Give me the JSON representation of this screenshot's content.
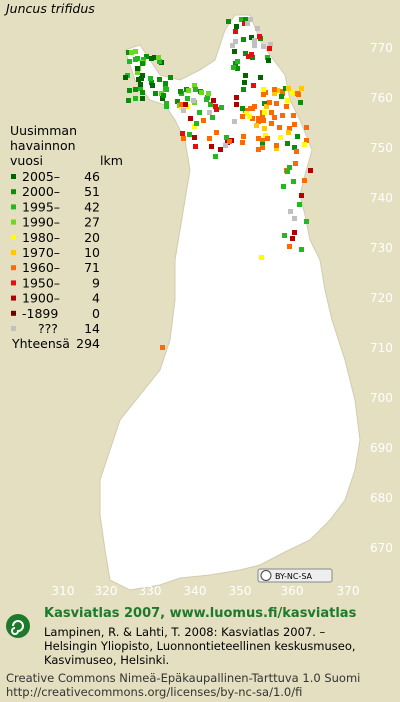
{
  "title": "Juncus trifidus",
  "legend": {
    "heading": [
      "Uusimman",
      "havainnon"
    ],
    "col_year": "vuosi",
    "col_count": "lkm",
    "rows": [
      {
        "label": "2005–",
        "count": 46,
        "color": "#006400"
      },
      {
        "label": "2000–",
        "count": 51,
        "color": "#0a8f0a"
      },
      {
        "label": "1995–",
        "count": 42,
        "color": "#22b822"
      },
      {
        "label": "1990–",
        "count": 27,
        "color": "#6ed81e"
      },
      {
        "label": "1980–",
        "count": 20,
        "color": "#ffff00"
      },
      {
        "label": "1970–",
        "count": 10,
        "color": "#ffc800"
      },
      {
        "label": "1960–",
        "count": 71,
        "color": "#ff6a00"
      },
      {
        "label": "1950–",
        "count": 9,
        "color": "#e01010"
      },
      {
        "label": "1900–",
        "count": 4,
        "color": "#b00000"
      },
      {
        "label": "-1899",
        "count": 0,
        "color": "#6a0000"
      },
      {
        "label": "???",
        "count": 14,
        "color": "#c0c0c0"
      }
    ],
    "total_label": "Yhteensä",
    "total": 294
  },
  "x_axis_labels": [
    310,
    320,
    330,
    340,
    350,
    360,
    370
  ],
  "y_axis_labels": [
    770,
    760,
    750,
    740,
    730,
    720,
    710,
    700,
    690,
    680,
    670
  ],
  "license_badge": "BY-NC-SA",
  "footer": {
    "brand": "Kasviatlas 2007, www.luomus.fi/kasviatlas",
    "citation": [
      "Lampinen, R. & Lahti, T. 2008: Kasviatlas 2007. –",
      "Helsingin Yliopisto, Luonnontieteellinen keskusmuseo,",
      "Kasvimuseo, Helsinki."
    ],
    "license": [
      "Creative Commons Nimeä-Epäkaupallinen-Tarttuva 1.0 Suomi",
      "http://creativecommons.org/licenses/by-nc-sa/1.0/fi"
    ]
  }
}
